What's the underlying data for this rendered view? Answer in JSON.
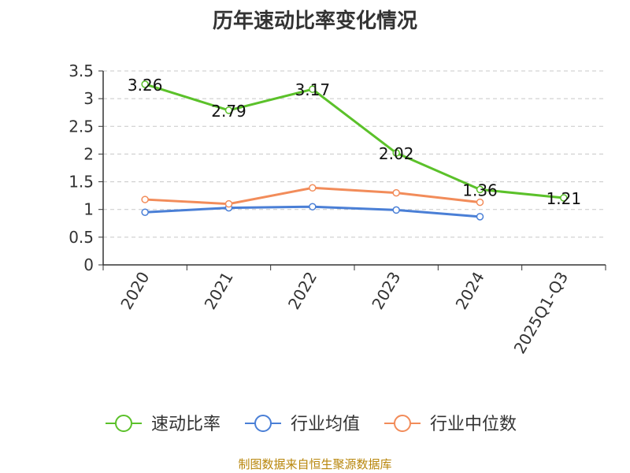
{
  "chart_data": {
    "type": "line",
    "title": "历年速动比率变化情况",
    "categories": [
      "2020",
      "2021",
      "2022",
      "2023",
      "2024",
      "2025Q1-Q3"
    ],
    "ylim": [
      0,
      3.5
    ],
    "yticks": [
      "0",
      "0.5",
      "1",
      "1.5",
      "2",
      "2.5",
      "3",
      "3.5"
    ],
    "grid": true,
    "legend_position": "bottom",
    "series": [
      {
        "name": "速动比率",
        "color": "#5bc12a",
        "values": [
          3.26,
          2.79,
          3.17,
          2.02,
          1.36,
          1.21
        ],
        "labels": [
          "3.26",
          "2.79",
          "3.17",
          "2.02",
          "1.36",
          "1.21"
        ]
      },
      {
        "name": "行业均值",
        "color": "#4a7fd6",
        "values": [
          0.95,
          1.03,
          1.05,
          0.99,
          0.87,
          null
        ]
      },
      {
        "name": "行业中位数",
        "color": "#f28c5a",
        "values": [
          1.18,
          1.1,
          1.39,
          1.3,
          1.13,
          null
        ]
      }
    ]
  },
  "source": "制图数据来自恒生聚源数据库"
}
